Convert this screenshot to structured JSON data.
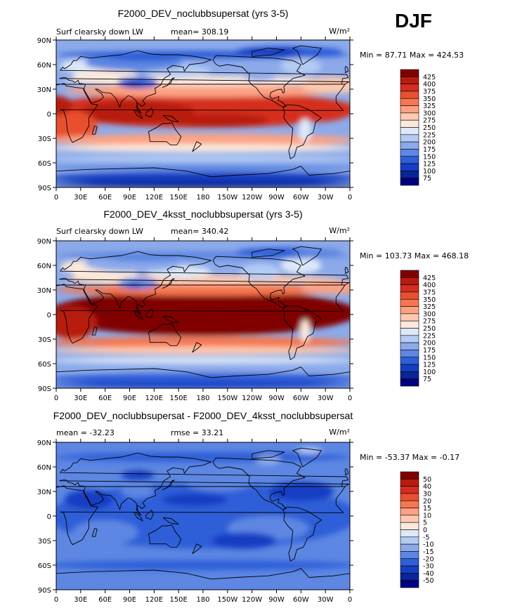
{
  "season": "DJF",
  "longitude_ticks": [
    "0",
    "30E",
    "60E",
    "90E",
    "120E",
    "150E",
    "180",
    "150W",
    "120W",
    "90W",
    "60W",
    "30W",
    "0"
  ],
  "latitude_ticks": [
    "90N",
    "60N",
    "30N",
    "0",
    "30S",
    "60S",
    "90S"
  ],
  "colors": {
    "ocean_warm": "#d52d1f",
    "ocean_hot": "#a50f15",
    "polar_cold": "#1f4fcf",
    "diff_blue": "#2a5ad6",
    "coast": "#000000"
  },
  "chart_data": [
    {
      "type": "heatmap",
      "title": "F2000_DEV_noclubbsupersat (yrs 3-5)",
      "left_label": "Surf clearsky down LW",
      "center_label": "mean= 308.19",
      "units_label": "W/m²",
      "minmax": "Min =  87.71 Max = 424.53",
      "mean": 308.19,
      "min": 87.71,
      "max": 424.53,
      "colorbar_levels": [
        "425",
        "400",
        "375",
        "350",
        "325",
        "300",
        "275",
        "250",
        "225",
        "200",
        "175",
        "150",
        "125",
        "100",
        "75"
      ],
      "colorbar_colors": [
        "#800000",
        "#b71c0e",
        "#d52d1f",
        "#e9502f",
        "#f6774f",
        "#fca283",
        "#fdc9b0",
        "#fbe9dc",
        "#dde8f8",
        "#b4cbf3",
        "#8caaea",
        "#5d87e2",
        "#2f5fd8",
        "#153ec2",
        "#0a2596",
        "#000080"
      ]
    },
    {
      "type": "heatmap",
      "title": "F2000_DEV_4ksst_noclubbsupersat (yrs 3-5)",
      "left_label": "Surf clearsky down LW",
      "center_label": "mean= 340.42",
      "units_label": "W/m²",
      "minmax": "Min = 103.73 Max = 468.18",
      "mean": 340.42,
      "min": 103.73,
      "max": 468.18,
      "colorbar_levels": [
        "425",
        "400",
        "375",
        "350",
        "325",
        "300",
        "275",
        "250",
        "225",
        "200",
        "175",
        "150",
        "125",
        "100",
        "75"
      ],
      "colorbar_colors": [
        "#800000",
        "#b71c0e",
        "#d52d1f",
        "#e9502f",
        "#f6774f",
        "#fca283",
        "#fdc9b0",
        "#fbe9dc",
        "#dde8f8",
        "#b4cbf3",
        "#8caaea",
        "#5d87e2",
        "#2f5fd8",
        "#153ec2",
        "#0a2596",
        "#000080"
      ]
    },
    {
      "type": "heatmap",
      "title": "F2000_DEV_noclubbsupersat - F2000_DEV_4ksst_noclubbsupersat",
      "left_label": "mean = -32.23",
      "center_label": "rmse =   33.21",
      "units_label": "W/m²",
      "minmax": "Min = -53.37 Max =  -0.17",
      "mean": -32.23,
      "rmse": 33.21,
      "min": -53.37,
      "max": -0.17,
      "colorbar_levels": [
        "50",
        "40",
        "30",
        "20",
        "15",
        "10",
        "5",
        "0",
        "-5",
        "-10",
        "-15",
        "-20",
        "-30",
        "-40",
        "-50"
      ],
      "colorbar_colors": [
        "#800000",
        "#b71c0e",
        "#d52d1f",
        "#e9502f",
        "#f6774f",
        "#fca283",
        "#fdc9b0",
        "#fbe9dc",
        "#dde8f8",
        "#b4cbf3",
        "#8caaea",
        "#5d87e2",
        "#2f5fd8",
        "#153ec2",
        "#0a2596",
        "#000080"
      ]
    }
  ]
}
